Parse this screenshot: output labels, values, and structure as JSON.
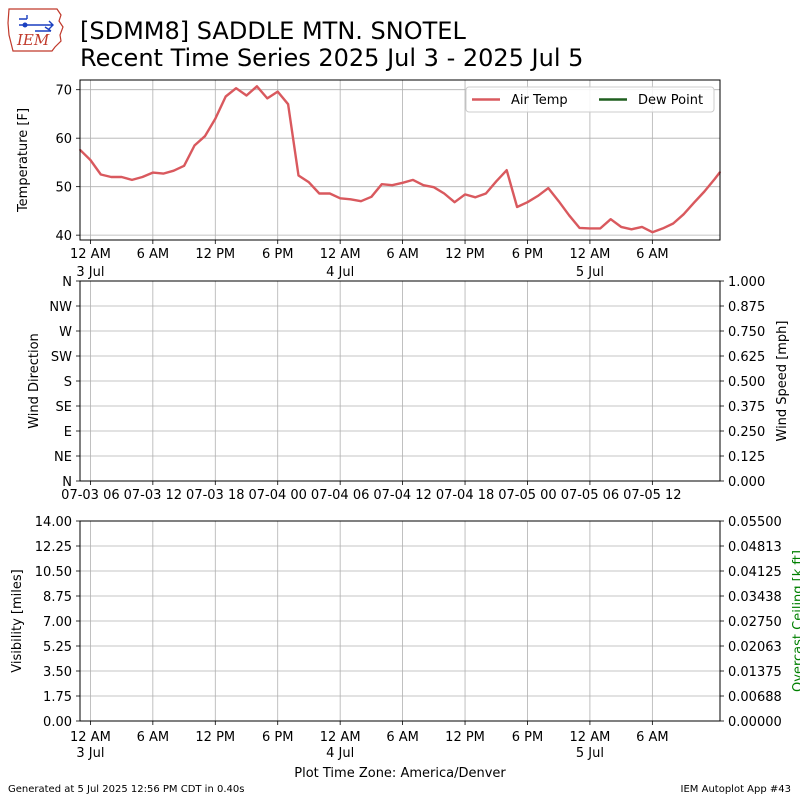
{
  "header": {
    "logo_text": "IEM",
    "title_line1": "[SDMM8] SADDLE MTN. SNOTEL",
    "title_line2": "Recent Time Series 2025 Jul 3 - 2025 Jul 5"
  },
  "footer": {
    "generated": "Generated at 5 Jul 2025 12:56 PM CDT in 0.40s",
    "app": "IEM Autoplot App #43"
  },
  "colors": {
    "air_temp": "#d9595e",
    "dew_point": "#1f5f1f",
    "grid": "#b0b0b0",
    "ceiling_label": "#008000"
  },
  "chart_data": [
    {
      "type": "line",
      "ylabel": "Temperature [F]",
      "ylim": [
        39,
        72
      ],
      "yticks": [
        40,
        50,
        60,
        70
      ],
      "grid": true,
      "legend_placement": "top-right",
      "x_range_hours": [
        -1,
        60.5
      ],
      "x_ticks": [
        {
          "hour": 0,
          "label": "12 AM",
          "sub": "3 Jul"
        },
        {
          "hour": 6,
          "label": "6 AM",
          "sub": ""
        },
        {
          "hour": 12,
          "label": "12 PM",
          "sub": ""
        },
        {
          "hour": 18,
          "label": "6 PM",
          "sub": ""
        },
        {
          "hour": 24,
          "label": "12 AM",
          "sub": "4 Jul"
        },
        {
          "hour": 30,
          "label": "6 AM",
          "sub": ""
        },
        {
          "hour": 36,
          "label": "12 PM",
          "sub": ""
        },
        {
          "hour": 42,
          "label": "6 PM",
          "sub": ""
        },
        {
          "hour": 48,
          "label": "12 AM",
          "sub": "5 Jul"
        },
        {
          "hour": 54,
          "label": "6 AM",
          "sub": ""
        }
      ],
      "series": [
        {
          "name": "Air Temp",
          "x": [
            -1,
            0,
            1,
            2,
            3,
            4,
            5,
            6,
            7,
            8,
            9,
            10,
            11,
            12,
            13,
            14,
            15,
            16,
            17,
            18,
            19,
            20,
            21,
            22,
            23,
            24,
            25,
            26,
            27,
            28,
            29,
            30,
            31,
            32,
            33,
            34,
            35,
            36,
            37,
            38,
            39,
            40,
            41,
            42,
            43,
            44,
            45,
            46,
            47,
            48,
            49,
            50,
            51,
            52,
            53,
            54,
            55,
            56,
            57,
            58,
            59,
            60,
            60.5
          ],
          "values": [
            57.6,
            55.5,
            52.5,
            52.0,
            52.0,
            51.4,
            52.0,
            52.9,
            52.7,
            53.3,
            54.3,
            58.5,
            60.4,
            64.0,
            68.6,
            70.3,
            68.8,
            70.7,
            68.2,
            69.6,
            67.0,
            52.3,
            50.9,
            48.6,
            48.6,
            47.6,
            47.4,
            47.0,
            47.9,
            50.5,
            50.3,
            50.8,
            51.4,
            50.3,
            49.9,
            48.6,
            46.8,
            48.4,
            47.8,
            48.6,
            51.1,
            53.4,
            45.8,
            46.8,
            48.1,
            49.7,
            47.0,
            44.1,
            41.5,
            41.4,
            41.4,
            43.3,
            41.7,
            41.2,
            41.7,
            40.6,
            41.4,
            42.4,
            44.3,
            46.7,
            49.0,
            51.6,
            53.0
          ]
        },
        {
          "name": "Dew Point",
          "x": [],
          "values": []
        }
      ]
    },
    {
      "type": "line",
      "ylabel": "Wind Direction",
      "ylabel_right": "Wind Speed [mph]",
      "yticks_left": [
        "N",
        "NE",
        "E",
        "SE",
        "S",
        "SW",
        "W",
        "NW",
        "N"
      ],
      "ylim_right": [
        0,
        1
      ],
      "yticks_right": [
        "0.000",
        "0.125",
        "0.250",
        "0.375",
        "0.500",
        "0.625",
        "0.750",
        "0.875",
        "1.000"
      ],
      "grid": true,
      "x_ticks": [
        {
          "hour": 0,
          "label": "07-03 06"
        },
        {
          "hour": 6,
          "label": "07-03 12"
        },
        {
          "hour": 12,
          "label": "07-03 18"
        },
        {
          "hour": 18,
          "label": "07-04 00"
        },
        {
          "hour": 24,
          "label": "07-04 06"
        },
        {
          "hour": 30,
          "label": "07-04 12"
        },
        {
          "hour": 36,
          "label": "07-04 18"
        },
        {
          "hour": 42,
          "label": "07-05 00"
        },
        {
          "hour": 48,
          "label": "07-05 06"
        },
        {
          "hour": 54,
          "label": "07-05 12"
        }
      ],
      "series": []
    },
    {
      "type": "line",
      "ylabel": "Visibility [miles]",
      "ylabel_right": "Overcast Ceiling [k ft]",
      "ylim": [
        0,
        14
      ],
      "yticks_left": [
        "0.00",
        "1.75",
        "3.50",
        "5.25",
        "7.00",
        "8.75",
        "10.50",
        "12.25",
        "14.00"
      ],
      "ylim_right": [
        0,
        0.055
      ],
      "yticks_right": [
        "0.00000",
        "0.00688",
        "0.01375",
        "0.02063",
        "0.02750",
        "0.03438",
        "0.04125",
        "0.04813",
        "0.05500"
      ],
      "xlabel": "Plot Time Zone: America/Denver",
      "grid": true,
      "x_ticks": [
        {
          "hour": 0,
          "label": "12 AM",
          "sub": "3 Jul"
        },
        {
          "hour": 6,
          "label": "6 AM",
          "sub": ""
        },
        {
          "hour": 12,
          "label": "12 PM",
          "sub": ""
        },
        {
          "hour": 18,
          "label": "6 PM",
          "sub": ""
        },
        {
          "hour": 24,
          "label": "12 AM",
          "sub": "4 Jul"
        },
        {
          "hour": 30,
          "label": "6 AM",
          "sub": ""
        },
        {
          "hour": 36,
          "label": "12 PM",
          "sub": ""
        },
        {
          "hour": 42,
          "label": "6 PM",
          "sub": ""
        },
        {
          "hour": 48,
          "label": "12 AM",
          "sub": "5 Jul"
        },
        {
          "hour": 54,
          "label": "6 AM",
          "sub": ""
        }
      ],
      "series": []
    }
  ]
}
